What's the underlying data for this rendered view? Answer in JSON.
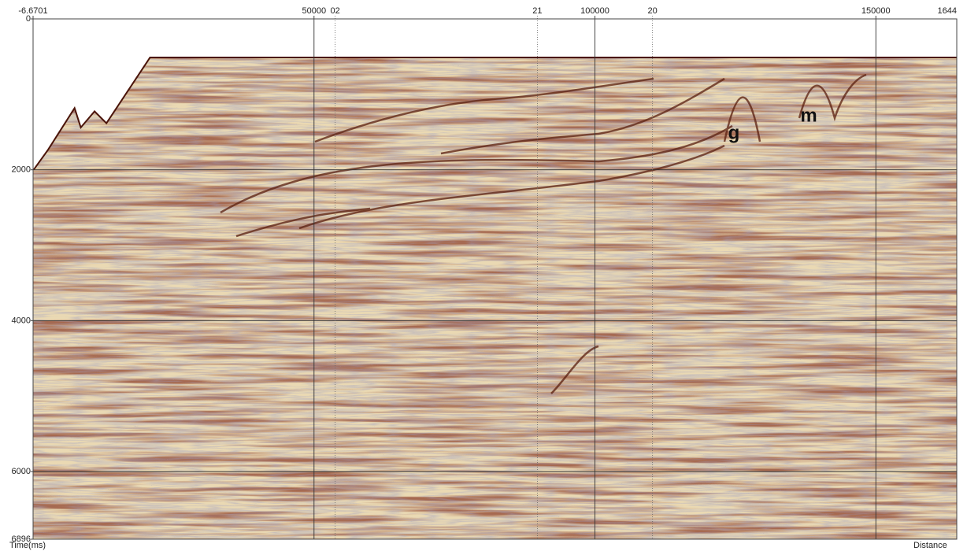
{
  "chart_data": {
    "type": "seismic",
    "x_label": "Distance",
    "y_label": "Time(ms)",
    "xlim": [
      -6.6701,
      164400
    ],
    "xticks": [
      {
        "value": -6.6701,
        "label": "-6.6701"
      },
      50000,
      100000,
      150000
    ],
    "x_end_label": "1644",
    "ylim": [
      0,
      6896
    ],
    "yticks": [
      0,
      2000,
      4000,
      6000,
      6896
    ],
    "grid": true,
    "line_markers": [
      {
        "x": 53766,
        "label": "02"
      },
      {
        "x": 89750,
        "label": "21"
      },
      {
        "x": 110250,
        "label": "20"
      }
    ],
    "annotations": [
      "g",
      "m"
    ]
  }
}
